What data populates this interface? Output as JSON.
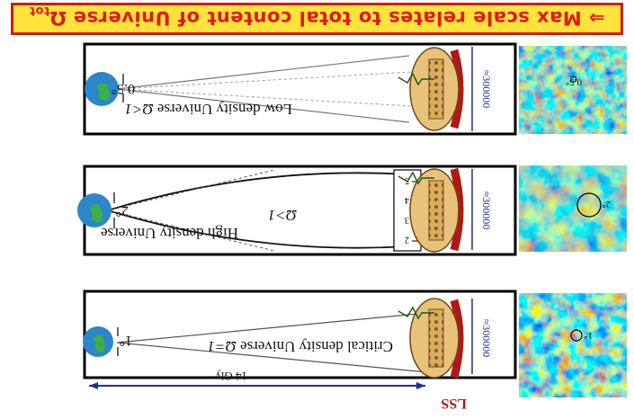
{
  "banner": {
    "arrow": "⇒",
    "text": "Max scale relates to total content of Universe",
    "symbol": "Ω",
    "subscript": "tot"
  },
  "panels": [
    {
      "title": "Low density Universe",
      "condition": "Ω<1",
      "angle": "0.5°",
      "map_angle": "0.5°",
      "distance": "≈300000",
      "colors": {
        "map_base": "#5fd3c0"
      }
    },
    {
      "title": "High density Universe",
      "condition": "Ω>1",
      "angle": "2°",
      "map_angle": "2°",
      "distance": "≈300000",
      "ruler_ticks": [
        "2",
        "3",
        "4",
        "5"
      ],
      "colors": {
        "map_base": "#7fd8a0"
      }
    },
    {
      "title": "Critical density Universe",
      "condition": "Ω=1",
      "angle": "1°",
      "map_angle": "1°",
      "distance": "≈300000",
      "scale": "14 Gly",
      "colors": {
        "map_base": "#66c6d6"
      }
    }
  ],
  "lss_label": "LSS",
  "colors": {
    "banner_bg": "#ffe33a",
    "banner_text": "#e01a1a",
    "earth": "#2c86c9",
    "land": "#3cae4a",
    "sphere": "#e8c27a",
    "lss": "#b01818",
    "measure": "#1a2f9c"
  }
}
